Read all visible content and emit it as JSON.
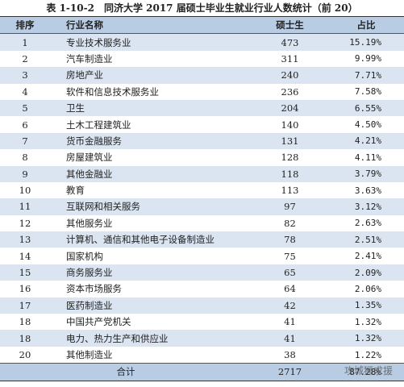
{
  "header": {
    "title": "表 1-10-2　同济大学 2017 届硕士毕业生就业行业人数统计（前 20）"
  },
  "table": {
    "columns": [
      "排序",
      "行业名称",
      "硕士生",
      "占比"
    ],
    "rows": [
      [
        1,
        "专业技术服务业",
        473,
        "15.19%"
      ],
      [
        2,
        "汽车制造业",
        311,
        "9.99%"
      ],
      [
        3,
        "房地产业",
        240,
        "7.71%"
      ],
      [
        4,
        "软件和信息技术服务业",
        236,
        "7.58%"
      ],
      [
        5,
        "卫生",
        204,
        "6.55%"
      ],
      [
        6,
        "土木工程建筑业",
        140,
        "4.50%"
      ],
      [
        7,
        "货币金融服务",
        131,
        "4.21%"
      ],
      [
        8,
        "房屋建筑业",
        128,
        "4.11%"
      ],
      [
        9,
        "其他金融业",
        118,
        "3.79%"
      ],
      [
        10,
        "教育",
        113,
        "3.63%"
      ],
      [
        11,
        "互联网和相关服务",
        97,
        "3.12%"
      ],
      [
        12,
        "其他服务业",
        82,
        "2.63%"
      ],
      [
        13,
        "计算机、通信和其他电子设备制造业",
        78,
        "2.51%"
      ],
      [
        14,
        "国家机构",
        75,
        "2.41%"
      ],
      [
        15,
        "商务服务业",
        65,
        "2.09%"
      ],
      [
        16,
        "资本市场服务",
        64,
        "2.06%"
      ],
      [
        17,
        "医药制造业",
        42,
        "1.35%"
      ],
      [
        18,
        "中国共产党机关",
        41,
        "1.32%"
      ],
      [
        18,
        "电力、热力生产和供应业",
        41,
        "1.32%"
      ],
      [
        20,
        "其他制造业",
        38,
        "1.22%"
      ]
    ],
    "total": [
      "合计",
      2717,
      "87.28%"
    ]
  },
  "watermark": "攻城狮求援"
}
